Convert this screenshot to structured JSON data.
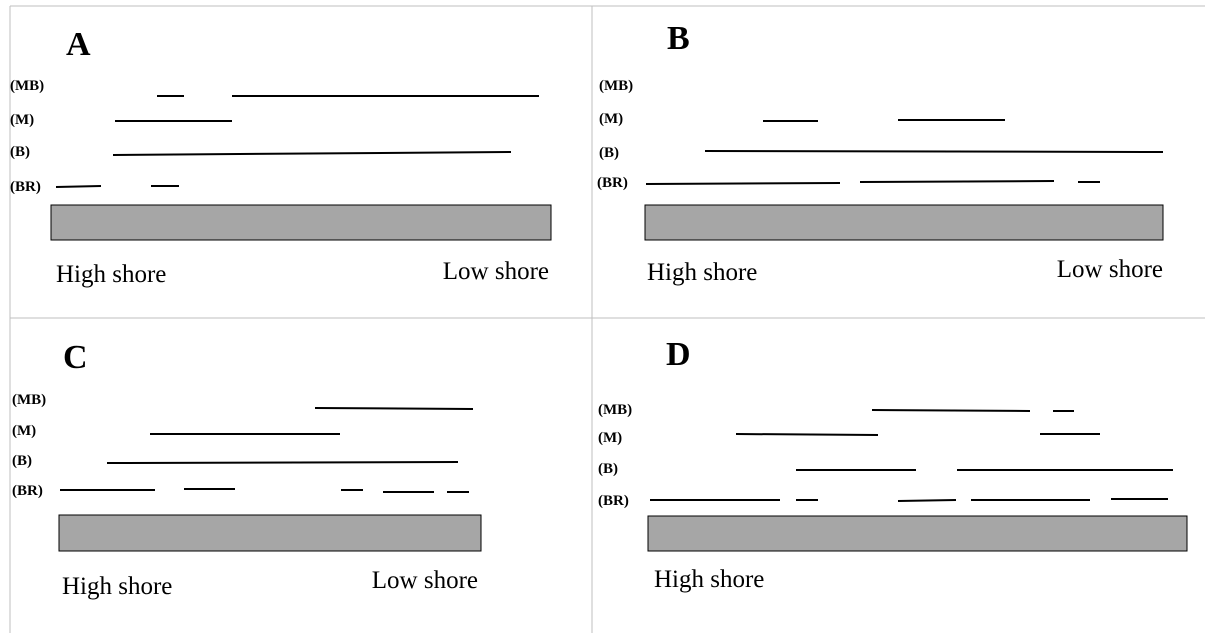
{
  "panels": [
    {
      "letter": "A",
      "row_labels": [
        "(MB)",
        "(M)",
        "(B)",
        "(BR)"
      ],
      "high_label": "High shore",
      "low_label": "Low shore"
    },
    {
      "letter": "B",
      "row_labels": [
        "(MB)",
        "(M)",
        "(B)",
        "(BR)"
      ],
      "high_label": "High shore",
      "low_label": "Low shore"
    },
    {
      "letter": "C",
      "row_labels": [
        "(MB)",
        "(M)",
        "(B)",
        "(BR)"
      ],
      "high_label": "High shore",
      "low_label": "Low shore"
    },
    {
      "letter": "D",
      "row_labels": [
        "(MB)",
        "(M)",
        "(B)",
        "(BR)"
      ],
      "high_label": "High shore",
      "low_label": ""
    }
  ]
}
